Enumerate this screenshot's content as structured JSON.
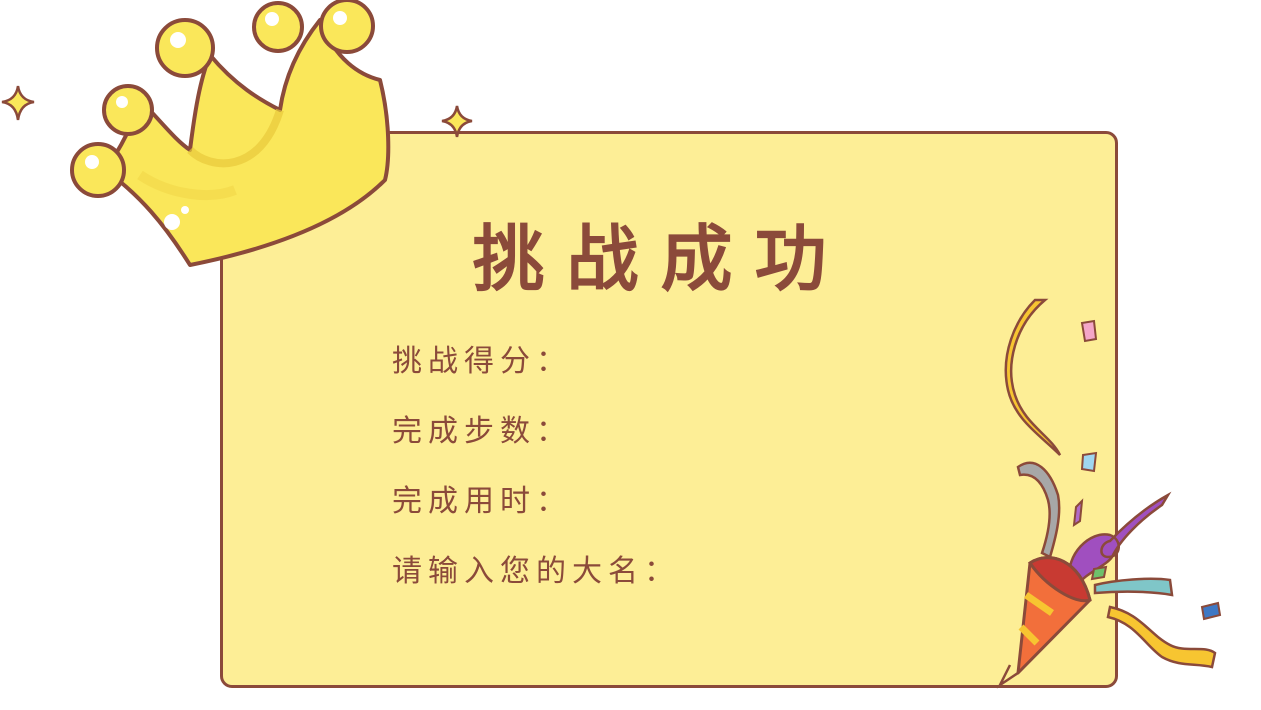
{
  "result": {
    "title": "挑战成功",
    "fields": [
      {
        "label": "挑战得分：",
        "value": ""
      },
      {
        "label": "完成步数：",
        "value": ""
      },
      {
        "label": "完成用时：",
        "value": ""
      },
      {
        "label": "请输入您的大名：",
        "value": ""
      }
    ]
  },
  "decorations": {
    "crown": "crown-icon",
    "party_popper": "party-popper-icon",
    "sparkle": "sparkle-icon"
  },
  "colors": {
    "card_fill": "#fdee96",
    "outline": "#8b4a3a",
    "crown": "#fae75a"
  }
}
